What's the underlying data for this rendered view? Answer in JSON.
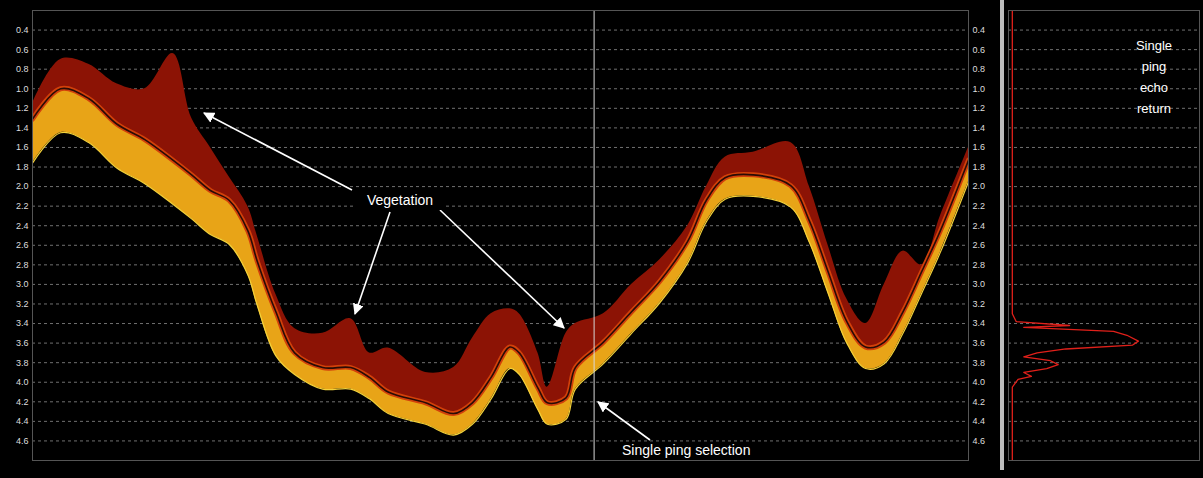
{
  "chart_data": {
    "type": "echogram",
    "x": [
      0,
      3,
      6,
      9,
      12,
      15,
      17,
      19,
      21,
      23,
      24,
      26,
      28,
      31,
      34,
      36,
      38,
      42,
      45,
      47,
      49,
      51,
      52,
      54,
      55,
      57,
      58,
      61,
      64,
      67,
      70,
      72,
      74,
      77,
      81,
      83,
      85,
      87,
      89,
      91,
      93,
      95,
      97,
      100
    ],
    "echo_top": [
      1.15,
      0.7,
      0.75,
      0.95,
      1.0,
      0.64,
      1.3,
      1.6,
      1.9,
      2.2,
      2.5,
      3.1,
      3.45,
      3.5,
      3.35,
      3.7,
      3.65,
      3.9,
      3.85,
      3.55,
      3.3,
      3.25,
      3.3,
      3.7,
      4.05,
      3.5,
      3.4,
      3.3,
      3.0,
      2.75,
      2.4,
      2.0,
      1.7,
      1.65,
      1.55,
      2.0,
      2.6,
      3.15,
      3.4,
      3.0,
      2.66,
      2.8,
      2.3,
      1.6
    ],
    "bottom_line": [
      1.31,
      1.0,
      1.1,
      1.36,
      1.52,
      1.73,
      1.88,
      2.04,
      2.14,
      2.45,
      2.76,
      3.28,
      3.7,
      3.85,
      3.85,
      3.95,
      4.1,
      4.21,
      4.32,
      4.21,
      3.95,
      3.64,
      3.7,
      4.06,
      4.21,
      4.16,
      3.85,
      3.59,
      3.28,
      2.97,
      2.56,
      2.14,
      1.91,
      1.88,
      1.99,
      2.35,
      2.87,
      3.38,
      3.64,
      3.59,
      3.28,
      2.87,
      2.45,
      1.73
    ],
    "echo_base": [
      1.76,
      1.45,
      1.55,
      1.81,
      1.97,
      2.18,
      2.33,
      2.49,
      2.59,
      2.9,
      3.21,
      3.73,
      3.92,
      4.07,
      4.07,
      4.17,
      4.32,
      4.43,
      4.54,
      4.43,
      4.17,
      3.86,
      3.92,
      4.28,
      4.43,
      4.38,
      4.07,
      3.81,
      3.5,
      3.19,
      2.78,
      2.36,
      2.13,
      2.1,
      2.21,
      2.57,
      3.09,
      3.6,
      3.86,
      3.81,
      3.5,
      3.09,
      2.67,
      1.95
    ],
    "colors": [
      "#8c1305",
      "#e8a417",
      "#2a0c06"
    ],
    "xlim": [
      0,
      100
    ],
    "ylim": [
      0.2,
      4.8
    ],
    "yticks": [
      0.4,
      0.6,
      0.8,
      {
        "value": 1,
        "label": "1.0"
      },
      1.2,
      1.4,
      1.6,
      1.8,
      {
        "value": 2,
        "label": "2.0"
      },
      2.2,
      2.4,
      2.6,
      2.8,
      {
        "value": 3,
        "label": "3.0"
      },
      3.2,
      3.4,
      3.6,
      3.8,
      {
        "value": 4,
        "label": "4.0"
      },
      4.2,
      4.4,
      4.6
    ],
    "grid": true,
    "tick_labels": "y",
    "annotations": [
      "Vegetation",
      "Single ping selection"
    ],
    "ping": {
      "x": 60,
      "title": "Single ping echo return",
      "color": "#e0201a",
      "xlim": [
        0,
        1
      ],
      "depth": [
        0.2,
        3.3,
        3.38,
        3.42,
        3.44,
        3.48,
        3.52,
        3.58,
        3.62,
        3.66,
        3.7,
        3.74,
        3.78,
        3.82,
        3.86,
        3.9,
        3.94,
        3.97,
        4.05,
        4.8
      ],
      "amplitude": [
        0.02,
        0.02,
        0.04,
        0.32,
        0.08,
        0.55,
        0.62,
        0.68,
        0.65,
        0.3,
        0.15,
        0.08,
        0.22,
        0.26,
        0.2,
        0.08,
        0.12,
        0.05,
        0.02,
        0.02
      ]
    }
  }
}
